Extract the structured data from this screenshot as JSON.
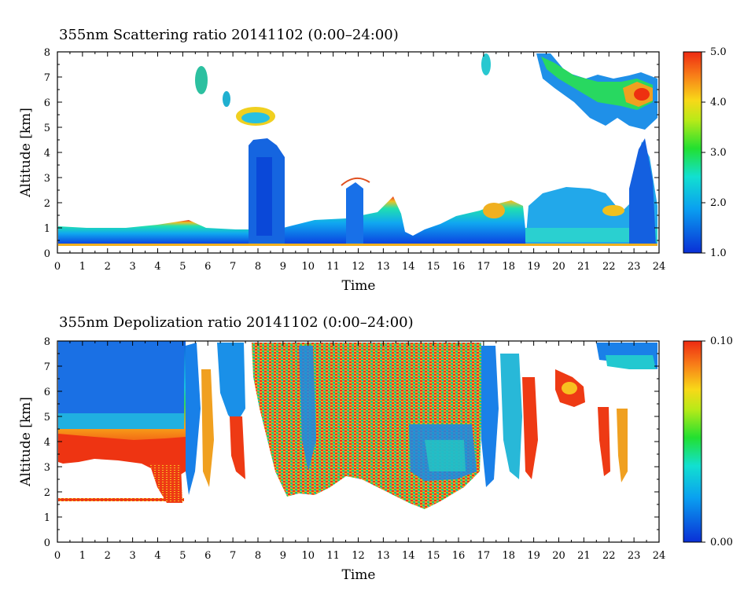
{
  "chart_data": [
    {
      "type": "heatmap",
      "title": "355nm Scattering ratio  20141102 (0:00–24:00)",
      "xlabel": "Time",
      "ylabel": "Altitude [km]",
      "xlim": [
        0,
        24
      ],
      "ylim": [
        0,
        8
      ],
      "x_ticks": [
        "0",
        "1",
        "2",
        "3",
        "4",
        "5",
        "6",
        "7",
        "8",
        "9",
        "10",
        "11",
        "12",
        "13",
        "14",
        "15",
        "16",
        "17",
        "18",
        "19",
        "20",
        "21",
        "22",
        "23",
        "24"
      ],
      "y_ticks": [
        "0",
        "1",
        "2",
        "3",
        "4",
        "5",
        "6",
        "7",
        "8"
      ],
      "colorbar": {
        "range": [
          1.0,
          5.0
        ],
        "ticks": [
          "1.0",
          "2.0",
          "3.0",
          "4.0",
          "5.0"
        ],
        "colormap": "rainbow (blue–cyan–green–yellow–red)"
      },
      "features": [
        {
          "name": "boundary layer",
          "x": [
            0,
            24
          ],
          "y_top": [
            1.0,
            1.0,
            1.1,
            1.2,
            1.3,
            0.9,
            0.9,
            1.0,
            1.0,
            1.1,
            1.6,
            2.0,
            2.6
          ]
        },
        {
          "name": "cloud column",
          "x": [
            7.6,
            9.0
          ],
          "y_top": 4.5
        },
        {
          "name": "cloud column",
          "x": [
            11.5,
            12.3
          ],
          "y_top": 2.9
        },
        {
          "name": "cirrus",
          "x": [
            17.0,
            24.0
          ],
          "y": [
            5.0,
            8.0
          ]
        },
        {
          "name": "aerosol layer",
          "x": [
            18.7,
            24.0
          ],
          "y": [
            0.3,
            2.8
          ]
        }
      ]
    },
    {
      "type": "heatmap",
      "title": "355nm Depolization ratio  20141102 (0:00–24:00)",
      "xlabel": "Time",
      "ylabel": "Altitude [km]",
      "xlim": [
        0,
        24
      ],
      "ylim": [
        0,
        8
      ],
      "x_ticks": [
        "0",
        "1",
        "2",
        "3",
        "4",
        "5",
        "6",
        "7",
        "8",
        "9",
        "10",
        "11",
        "12",
        "13",
        "14",
        "15",
        "16",
        "17",
        "18",
        "19",
        "20",
        "21",
        "22",
        "23",
        "24"
      ],
      "y_ticks": [
        "0",
        "1",
        "2",
        "3",
        "4",
        "5",
        "6",
        "7",
        "8"
      ],
      "colorbar": {
        "range": [
          0.0,
          0.1
        ],
        "ticks": [
          "0.00",
          "0.10"
        ],
        "colormap": "rainbow (blue–cyan–green–yellow–red)"
      },
      "features": [
        {
          "name": "low depol region",
          "x": [
            0,
            5.2
          ],
          "y": [
            4.5,
            8.0
          ]
        },
        {
          "name": "high depol layer",
          "x": [
            0,
            5.2
          ],
          "y": [
            1.5,
            4.4
          ]
        },
        {
          "name": "mixed depol region",
          "x": [
            7.5,
            17.0
          ],
          "y": [
            1.3,
            8.0
          ]
        },
        {
          "name": "high depol patch",
          "x": [
            19.7,
            21.0
          ],
          "y": [
            5.5,
            6.8
          ]
        }
      ]
    }
  ]
}
